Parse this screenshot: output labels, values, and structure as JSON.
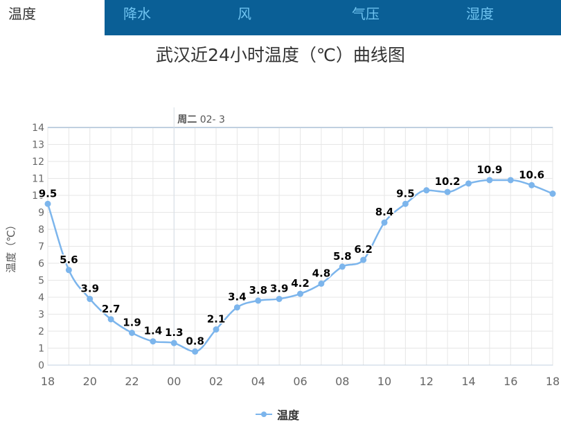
{
  "tabs": [
    {
      "label": "温度",
      "active": true
    },
    {
      "label": "降水",
      "active": false
    },
    {
      "label": "风",
      "active": false
    },
    {
      "label": "气压",
      "active": false
    },
    {
      "label": "湿度",
      "active": false
    }
  ],
  "colors": {
    "tab_bar": "#0a5f96",
    "tab_text": "#6fc3f0",
    "series": "#7cb5ec",
    "grid": "#e6e6e6"
  },
  "chart_data": {
    "type": "line",
    "title": "武汉近24小时温度（℃）曲线图",
    "ylabel": "温度（℃）",
    "xlabel": "",
    "ylim": [
      0,
      14
    ],
    "yticks": [
      "0",
      "1",
      "2",
      "3",
      "4",
      "5",
      "6",
      "7",
      "8",
      "9",
      "10",
      "11",
      "12",
      "13",
      "14"
    ],
    "xtick_labels": [
      "18",
      "20",
      "22",
      "00",
      "02",
      "04",
      "06",
      "08",
      "10",
      "12",
      "14",
      "16",
      "18"
    ],
    "date_marker": {
      "weekday": "周二",
      "date": "02- 3"
    },
    "legend_position": "bottom-center",
    "grid": true,
    "series": [
      {
        "name": "温度",
        "x": [
          "18",
          "19",
          "20",
          "21",
          "22",
          "23",
          "00",
          "01",
          "02",
          "03",
          "04",
          "05",
          "06",
          "07",
          "08",
          "09",
          "10",
          "11",
          "12",
          "13",
          "14",
          "15",
          "16",
          "17",
          "18"
        ],
        "values": [
          9.5,
          5.6,
          3.9,
          2.7,
          1.9,
          1.4,
          1.3,
          0.8,
          2.1,
          3.4,
          3.8,
          3.9,
          4.2,
          4.8,
          5.8,
          6.2,
          8.4,
          9.5,
          10.3,
          10.2,
          10.7,
          10.9,
          10.9,
          10.6,
          10.1
        ],
        "data_labels": [
          "9.5",
          "5.6",
          "3.9",
          "2.7",
          "1.9",
          "1.4",
          "1.3",
          "0.8",
          "2.1",
          "3.4",
          "3.8",
          "3.9",
          "4.2",
          "4.8",
          "5.8",
          "6.2",
          "8.4",
          "9.5",
          "",
          "10.2",
          "",
          "10.9",
          "",
          "10.6",
          ""
        ]
      }
    ]
  }
}
